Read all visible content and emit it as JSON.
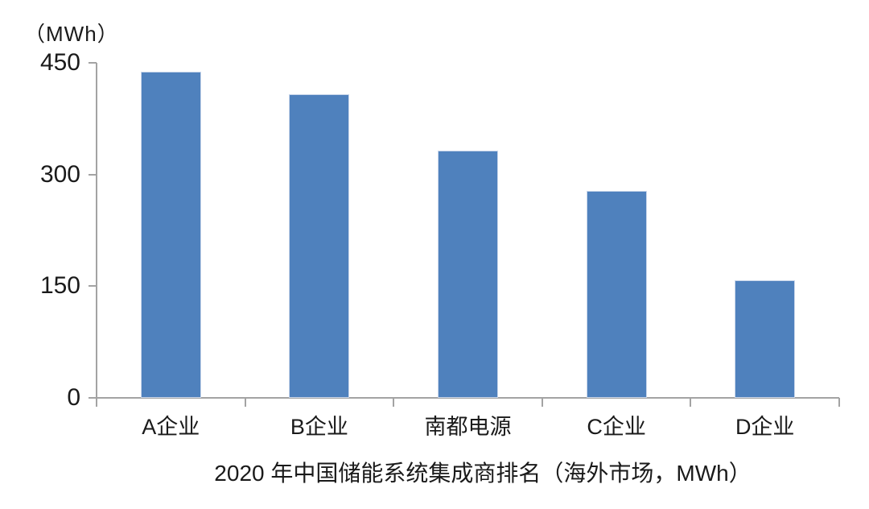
{
  "chart_data": {
    "type": "bar",
    "title": "2020 年中国储能系统集成商排名（海外市场，MWh）",
    "unit_label": "（MWh）",
    "categories": [
      "A企业",
      "B企业",
      "南都电源",
      "C企业",
      "D企业"
    ],
    "values": [
      438,
      408,
      332,
      278,
      158
    ],
    "yticks": [
      0,
      150,
      300,
      450
    ],
    "ylim": [
      0,
      450
    ],
    "xlabel": "",
    "ylabel": "MWh",
    "legend_position": "none",
    "grid": false,
    "bar_color": "#4F81BD",
    "bar_edge_color": "#C9D6EA",
    "axis_color": "#A3A3A3",
    "text_color": "#1A1A1A",
    "background_color": "#FFFFFF"
  }
}
